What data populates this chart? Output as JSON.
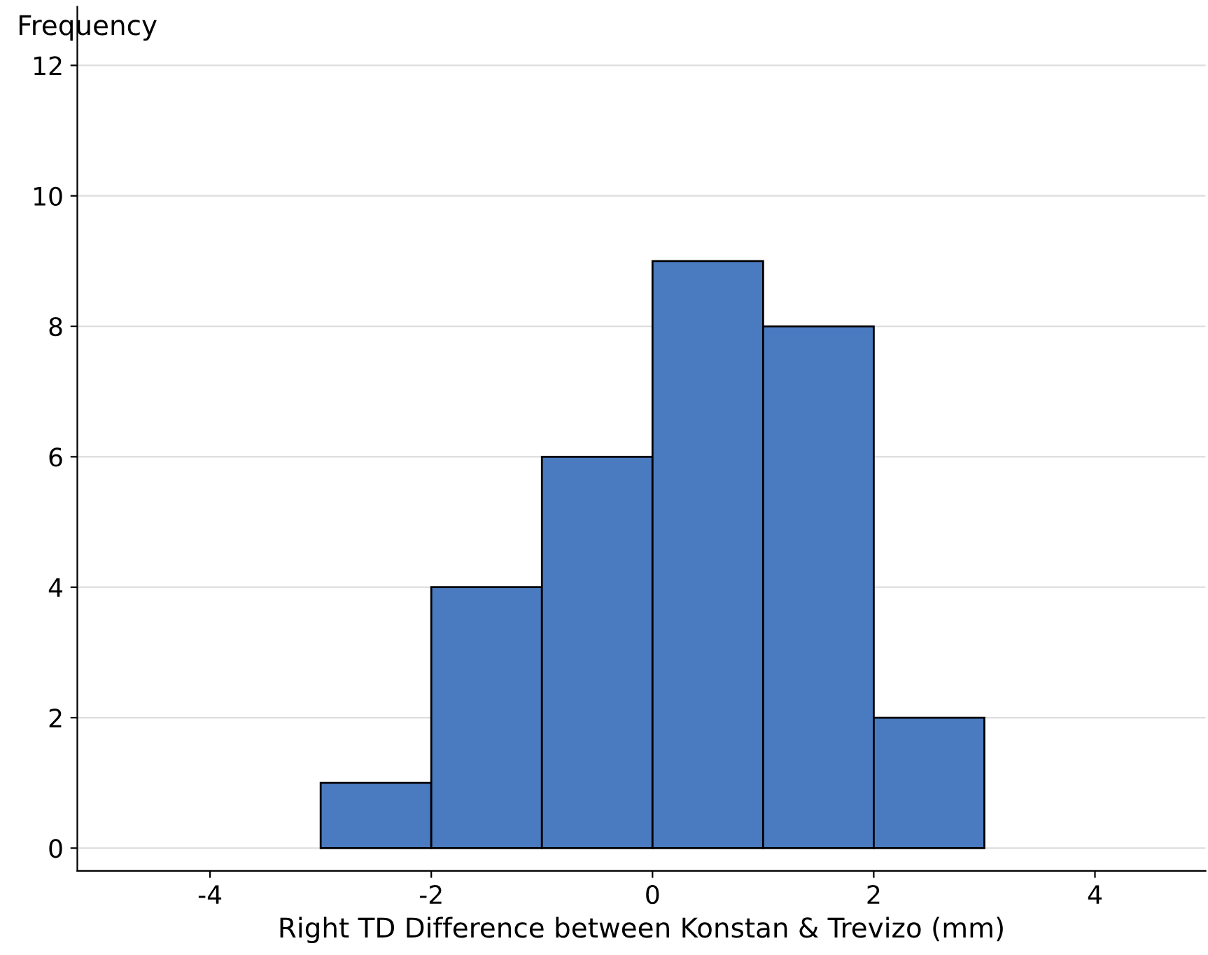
{
  "chart_data": {
    "type": "histogram",
    "ylabel": "Frequency",
    "xlabel": "Right TD Difference between Konstan & Trevizo (mm)",
    "bins": [
      -3,
      -2,
      -1,
      0,
      1,
      2,
      3
    ],
    "values": [
      1,
      4,
      6,
      9,
      8,
      2
    ],
    "color": "#4a7bc1",
    "xlim": [
      -5.2,
      5
    ],
    "xticks": [
      -4,
      -2,
      0,
      2,
      4
    ],
    "ylim": [
      -0.35,
      12.9
    ],
    "yticks": [
      0,
      2,
      4,
      6,
      8,
      10,
      12
    ],
    "grid": "y"
  }
}
